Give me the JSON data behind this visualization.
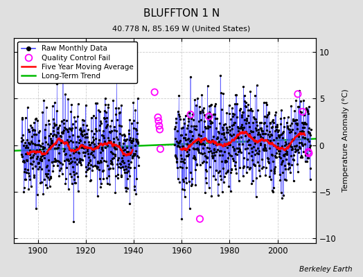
{
  "title": "BLUFFTON 1 N",
  "subtitle": "40.778 N, 85.169 W (United States)",
  "ylabel": "Temperature Anomaly (°C)",
  "credit": "Berkeley Earth",
  "ylim": [
    -10.5,
    11.5
  ],
  "xlim": [
    1890,
    2016
  ],
  "yticks": [
    -10,
    -5,
    0,
    5,
    10
  ],
  "xticks": [
    1900,
    1920,
    1940,
    1960,
    1980,
    2000
  ],
  "fig_bg_color": "#e0e0e0",
  "plot_bg_color": "#ffffff",
  "grid_color": "#cccccc",
  "raw_line_color": "#4444ff",
  "raw_dot_color": "#000000",
  "ma_color": "#ff0000",
  "trend_color": "#00bb00",
  "qc_color": "#ff00ff",
  "seed": 42,
  "segment1_start_year": 1893,
  "segment1_end_year": 1941,
  "segment2_start_year": 1957,
  "segment2_end_year": 2013,
  "qc_fail_points_seg_gap": [
    [
      1948.7,
      5.7
    ],
    [
      1950.1,
      3.0
    ],
    [
      1950.35,
      2.6
    ],
    [
      1950.6,
      2.1
    ],
    [
      1950.85,
      1.7
    ],
    [
      1951.1,
      -0.4
    ]
  ],
  "qc_fail_points_seg2": [
    [
      1963.7,
      3.3
    ],
    [
      1967.6,
      -7.9
    ],
    [
      1971.4,
      3.1
    ],
    [
      2008.5,
      5.5
    ],
    [
      2010.5,
      3.6
    ],
    [
      2012.9,
      -0.7
    ],
    [
      2013.15,
      -0.85
    ]
  ]
}
